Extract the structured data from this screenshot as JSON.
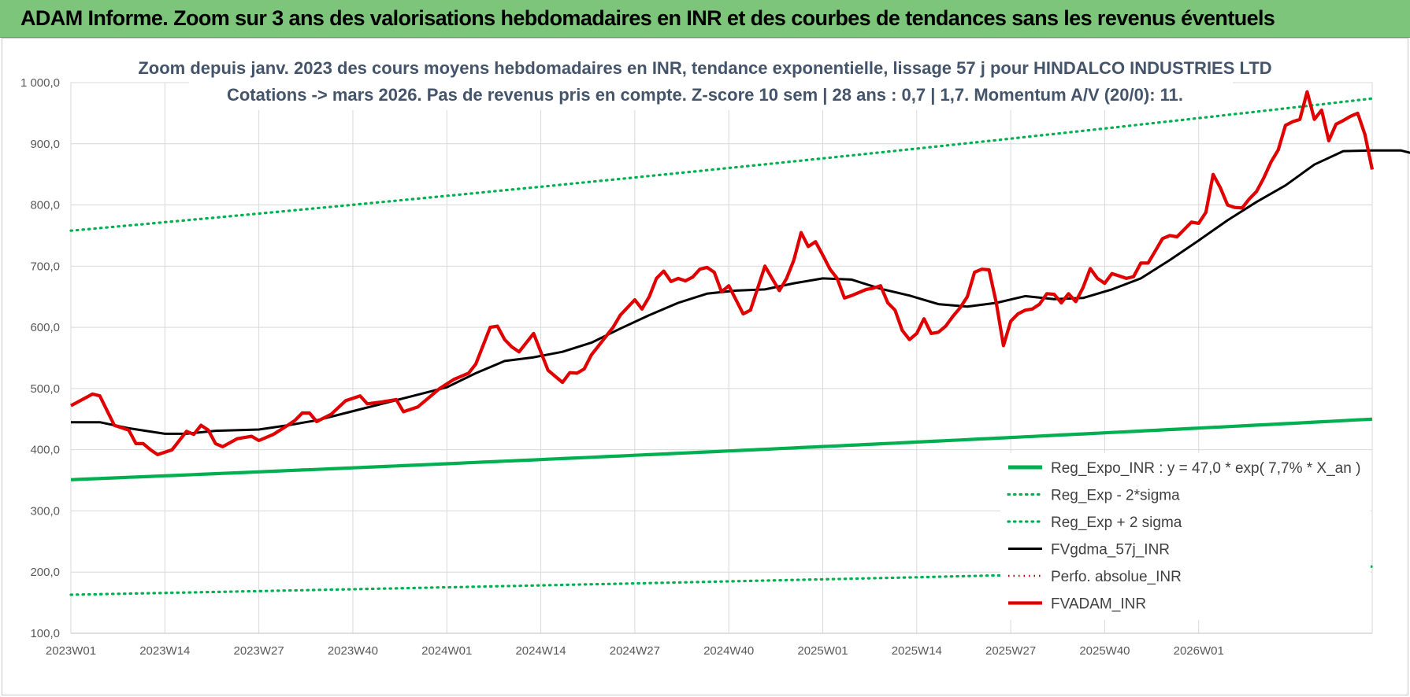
{
  "banner": {
    "title": "ADAM Informe. Zoom sur 3 ans des valorisations hebdomadaires en INR et des courbes de tendances sans les revenus éventuels"
  },
  "colors": {
    "banner_bg": "#7cc57a",
    "reg_expo": "#00b050",
    "band": "#00b050",
    "fvgdma": "#000000",
    "fvadam": "#e00000",
    "perfo": "#c00000",
    "grid": "#d9d9d9"
  },
  "chart_data": {
    "type": "line",
    "title_line1": "Zoom depuis janv. 2023 des cours moyens hebdomadaires en INR, tendance exponentielle, lissage 57 j pour HINDALCO INDUSTRIES LTD",
    "title_line2": "Cotations -> mars 2026. Pas de revenus pris en compte. Z-score 10 sem | 28 ans : 0,7 | 1,7. Momentum A/V (20/0): 11.",
    "ylim": [
      100,
      1000
    ],
    "yticks": [
      "100,0",
      "200,0",
      "300,0",
      "400,0",
      "500,0",
      "600,0",
      "700,0",
      "800,0",
      "900,0",
      "1 000,0"
    ],
    "xlabels": [
      "2023W01",
      "2023W14",
      "2023W27",
      "2023W40",
      "2024W01",
      "2024W14",
      "2024W27",
      "2024W40",
      "2025W01",
      "2025W14",
      "2025W27",
      "2025W40",
      "2026W01"
    ],
    "xlabel_weeks": [
      0,
      13,
      26,
      39,
      52,
      65,
      78,
      91,
      104,
      117,
      130,
      143,
      156
    ],
    "n_weeks": 173,
    "grid": true,
    "legend_position": "bottom-right",
    "series": [
      {
        "name": "Reg_Expo_INR : y = 47,0 * exp( 7,7% *  X_an )",
        "style": "solid-thick",
        "color": "#00b050",
        "start": 351,
        "end": 450
      },
      {
        "name": "Reg_Exp - 2*sigma",
        "style": "dotted",
        "color": "#00b050",
        "start": 163,
        "end": 209
      },
      {
        "name": "Reg_Exp + 2 sigma",
        "style": "dotted",
        "color": "#00b050",
        "start": 758,
        "end": 974
      },
      {
        "name": "FVgdma_57j_INR",
        "style": "solid",
        "color": "#000000",
        "points": [
          [
            0,
            445
          ],
          [
            4,
            445
          ],
          [
            8,
            435
          ],
          [
            13,
            426
          ],
          [
            16,
            426
          ],
          [
            20,
            431
          ],
          [
            26,
            433
          ],
          [
            30,
            440
          ],
          [
            34,
            448
          ],
          [
            38,
            460
          ],
          [
            44,
            478
          ],
          [
            48,
            490
          ],
          [
            52,
            502
          ],
          [
            56,
            525
          ],
          [
            60,
            545
          ],
          [
            64,
            551
          ],
          [
            68,
            560
          ],
          [
            72,
            575
          ],
          [
            76,
            598
          ],
          [
            80,
            620
          ],
          [
            84,
            640
          ],
          [
            88,
            655
          ],
          [
            92,
            660
          ],
          [
            96,
            662
          ],
          [
            100,
            672
          ],
          [
            104,
            680
          ],
          [
            108,
            678
          ],
          [
            112,
            663
          ],
          [
            116,
            652
          ],
          [
            120,
            638
          ],
          [
            124,
            634
          ],
          [
            128,
            640
          ],
          [
            132,
            651
          ],
          [
            136,
            646
          ],
          [
            140,
            648
          ],
          [
            144,
            662
          ],
          [
            148,
            680
          ],
          [
            152,
            710
          ],
          [
            156,
            742
          ],
          [
            160,
            775
          ],
          [
            164,
            805
          ],
          [
            168,
            832
          ],
          [
            172,
            866
          ],
          [
            176,
            888
          ],
          [
            180,
            889
          ],
          [
            184,
            889
          ],
          [
            188,
            877
          ]
        ]
      },
      {
        "name": "Perfo. absolue_INR",
        "style": "solid",
        "color": "#c00000",
        "points": []
      },
      {
        "name": "FVADAM_INR",
        "style": "solid-thick",
        "color": "#e00000",
        "points": [
          [
            0,
            472
          ],
          [
            3,
            491
          ],
          [
            4,
            488
          ],
          [
            6,
            440
          ],
          [
            8,
            432
          ],
          [
            9,
            410
          ],
          [
            10,
            410
          ],
          [
            11,
            400
          ],
          [
            12,
            392
          ],
          [
            14,
            400
          ],
          [
            16,
            430
          ],
          [
            17,
            425
          ],
          [
            18,
            440
          ],
          [
            19,
            432
          ],
          [
            20,
            410
          ],
          [
            21,
            405
          ],
          [
            23,
            418
          ],
          [
            25,
            422
          ],
          [
            26,
            415
          ],
          [
            28,
            425
          ],
          [
            30,
            440
          ],
          [
            31,
            448
          ],
          [
            32,
            460
          ],
          [
            33,
            460
          ],
          [
            34,
            446
          ],
          [
            36,
            458
          ],
          [
            38,
            480
          ],
          [
            40,
            488
          ],
          [
            41,
            475
          ],
          [
            43,
            478
          ],
          [
            45,
            482
          ],
          [
            46,
            462
          ],
          [
            48,
            470
          ],
          [
            50,
            490
          ],
          [
            51,
            500
          ],
          [
            53,
            515
          ],
          [
            55,
            525
          ],
          [
            56,
            540
          ],
          [
            58,
            600
          ],
          [
            59,
            602
          ],
          [
            60,
            580
          ],
          [
            61,
            568
          ],
          [
            62,
            560
          ],
          [
            64,
            590
          ],
          [
            66,
            530
          ],
          [
            68,
            510
          ],
          [
            69,
            526
          ],
          [
            70,
            525
          ],
          [
            71,
            532
          ],
          [
            72,
            555
          ],
          [
            73,
            570
          ],
          [
            75,
            600
          ],
          [
            76,
            620
          ],
          [
            78,
            645
          ],
          [
            79,
            630
          ],
          [
            80,
            650
          ],
          [
            81,
            680
          ],
          [
            82,
            692
          ],
          [
            83,
            675
          ],
          [
            84,
            680
          ],
          [
            85,
            676
          ],
          [
            86,
            682
          ],
          [
            87,
            695
          ],
          [
            88,
            698
          ],
          [
            89,
            690
          ],
          [
            90,
            658
          ],
          [
            91,
            668
          ],
          [
            93,
            622
          ],
          [
            94,
            628
          ],
          [
            96,
            700
          ],
          [
            97,
            680
          ],
          [
            98,
            660
          ],
          [
            99,
            680
          ],
          [
            100,
            710
          ],
          [
            101,
            755
          ],
          [
            102,
            732
          ],
          [
            103,
            740
          ],
          [
            104,
            718
          ],
          [
            105,
            695
          ],
          [
            106,
            680
          ],
          [
            107,
            648
          ],
          [
            108,
            652
          ],
          [
            110,
            662
          ],
          [
            111,
            664
          ],
          [
            112,
            668
          ],
          [
            113,
            640
          ],
          [
            114,
            628
          ],
          [
            115,
            595
          ],
          [
            116,
            580
          ],
          [
            117,
            590
          ],
          [
            118,
            614
          ],
          [
            119,
            590
          ],
          [
            120,
            592
          ],
          [
            121,
            602
          ],
          [
            122,
            618
          ],
          [
            123,
            632
          ],
          [
            124,
            650
          ],
          [
            125,
            690
          ],
          [
            126,
            695
          ],
          [
            127,
            694
          ],
          [
            128,
            640
          ],
          [
            129,
            570
          ],
          [
            130,
            610
          ],
          [
            131,
            622
          ],
          [
            132,
            628
          ],
          [
            133,
            630
          ],
          [
            134,
            638
          ],
          [
            135,
            655
          ],
          [
            136,
            654
          ],
          [
            137,
            640
          ],
          [
            138,
            655
          ],
          [
            139,
            642
          ],
          [
            140,
            665
          ],
          [
            141,
            696
          ],
          [
            142,
            680
          ],
          [
            143,
            672
          ],
          [
            144,
            688
          ],
          [
            145,
            684
          ],
          [
            146,
            680
          ],
          [
            147,
            683
          ],
          [
            148,
            705
          ],
          [
            149,
            705
          ],
          [
            150,
            725
          ],
          [
            151,
            745
          ],
          [
            152,
            750
          ],
          [
            153,
            748
          ],
          [
            154,
            760
          ],
          [
            155,
            772
          ],
          [
            156,
            770
          ],
          [
            157,
            788
          ],
          [
            158,
            850
          ],
          [
            159,
            828
          ],
          [
            160,
            800
          ],
          [
            161,
            796
          ],
          [
            162,
            795
          ],
          [
            163,
            810
          ],
          [
            164,
            822
          ],
          [
            165,
            844
          ],
          [
            166,
            870
          ],
          [
            167,
            890
          ],
          [
            168,
            930
          ],
          [
            169,
            936
          ],
          [
            170,
            940
          ],
          [
            171,
            985
          ],
          [
            172,
            940
          ],
          [
            173,
            955
          ],
          [
            174,
            905
          ],
          [
            175,
            932
          ],
          [
            176,
            938
          ],
          [
            177,
            945
          ],
          [
            178,
            950
          ],
          [
            179,
            915
          ],
          [
            180,
            858
          ]
        ]
      }
    ]
  }
}
